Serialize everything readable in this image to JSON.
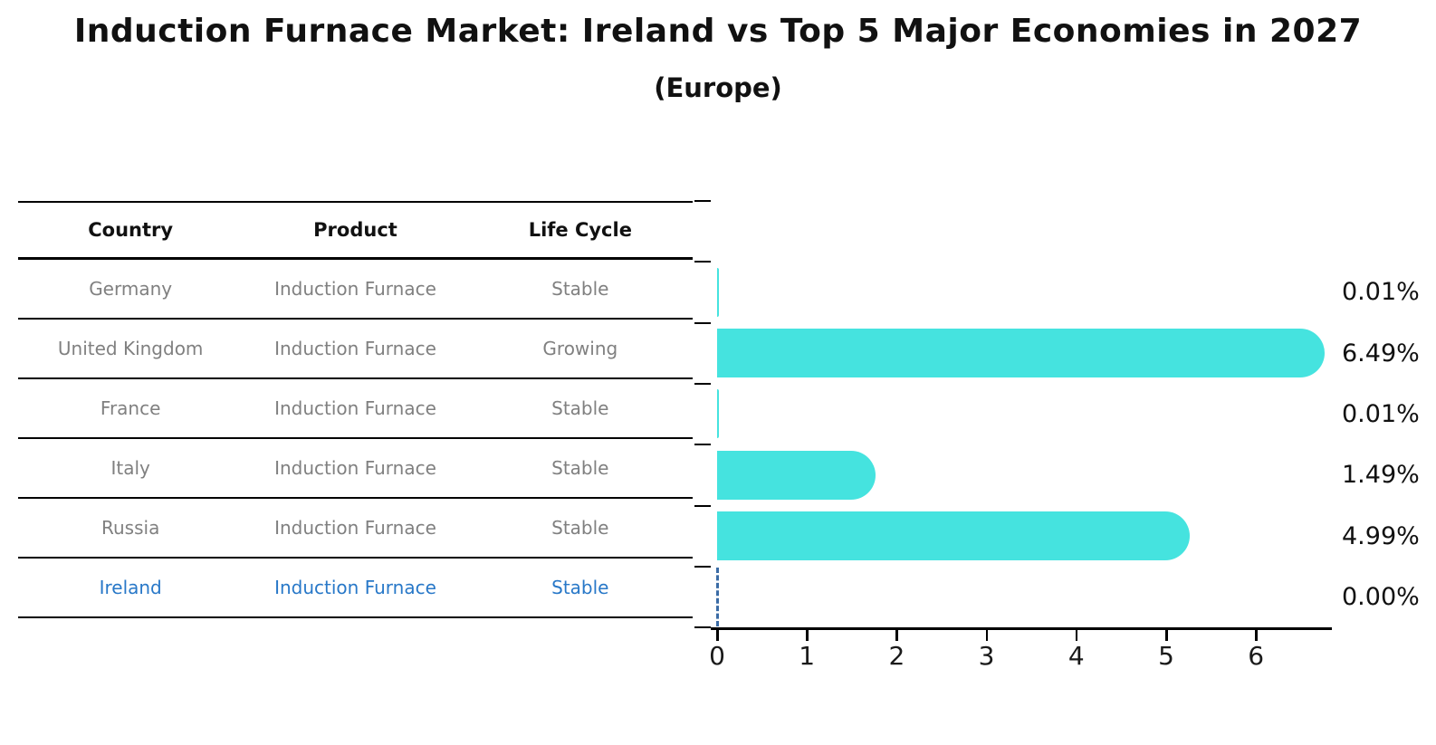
{
  "header": {
    "title": "Induction Furnace Market: Ireland vs Top 5 Major Economies in 2027",
    "subtitle": "(Europe)"
  },
  "table": {
    "headers": [
      "Country",
      "Product",
      "Life Cycle"
    ],
    "rows": [
      {
        "country": "Germany",
        "product": "Induction Furnace",
        "life_cycle": "Stable",
        "highlighted": false
      },
      {
        "country": "United Kingdom",
        "product": "Induction Furnace",
        "life_cycle": "Growing",
        "highlighted": false
      },
      {
        "country": "France",
        "product": "Induction Furnace",
        "life_cycle": "Stable",
        "highlighted": false
      },
      {
        "country": "Italy",
        "product": "Induction Furnace",
        "life_cycle": "Stable",
        "highlighted": false
      },
      {
        "country": "Russia",
        "product": "Induction Furnace",
        "life_cycle": "Stable",
        "highlighted": false
      },
      {
        "country": "Ireland",
        "product": "Induction Furnace",
        "life_cycle": "Stable",
        "highlighted": true
      }
    ]
  },
  "chart_data": {
    "type": "bar",
    "orientation": "horizontal",
    "title": "Induction Furnace Market: Ireland vs Top 5 Major Economies in 2027",
    "subtitle": "(Europe)",
    "categories": [
      "Germany",
      "United Kingdom",
      "France",
      "Italy",
      "Russia",
      "Ireland"
    ],
    "values": [
      0.01,
      6.49,
      0.01,
      1.49,
      4.99,
      0.0
    ],
    "value_labels": [
      "0.01%",
      "6.49%",
      "0.01%",
      "1.49%",
      "4.99%",
      "0.00%"
    ],
    "xlabel": "",
    "ylabel": "",
    "xlim": [
      0,
      6.9
    ],
    "xticks": [
      "0",
      "1",
      "2",
      "3",
      "4",
      "5",
      "6"
    ],
    "grid": false,
    "legend": false,
    "bar_color": "#45E3DF",
    "highlight_index": 5,
    "highlight_style": "dashed-blue-zero-line"
  },
  "colors": {
    "bar": "#45E3DF",
    "highlight_text": "#2878C8",
    "highlight_dash": "#3A6BA5",
    "table_text": "#808080",
    "header_text": "#111111",
    "axis": "#000000"
  }
}
